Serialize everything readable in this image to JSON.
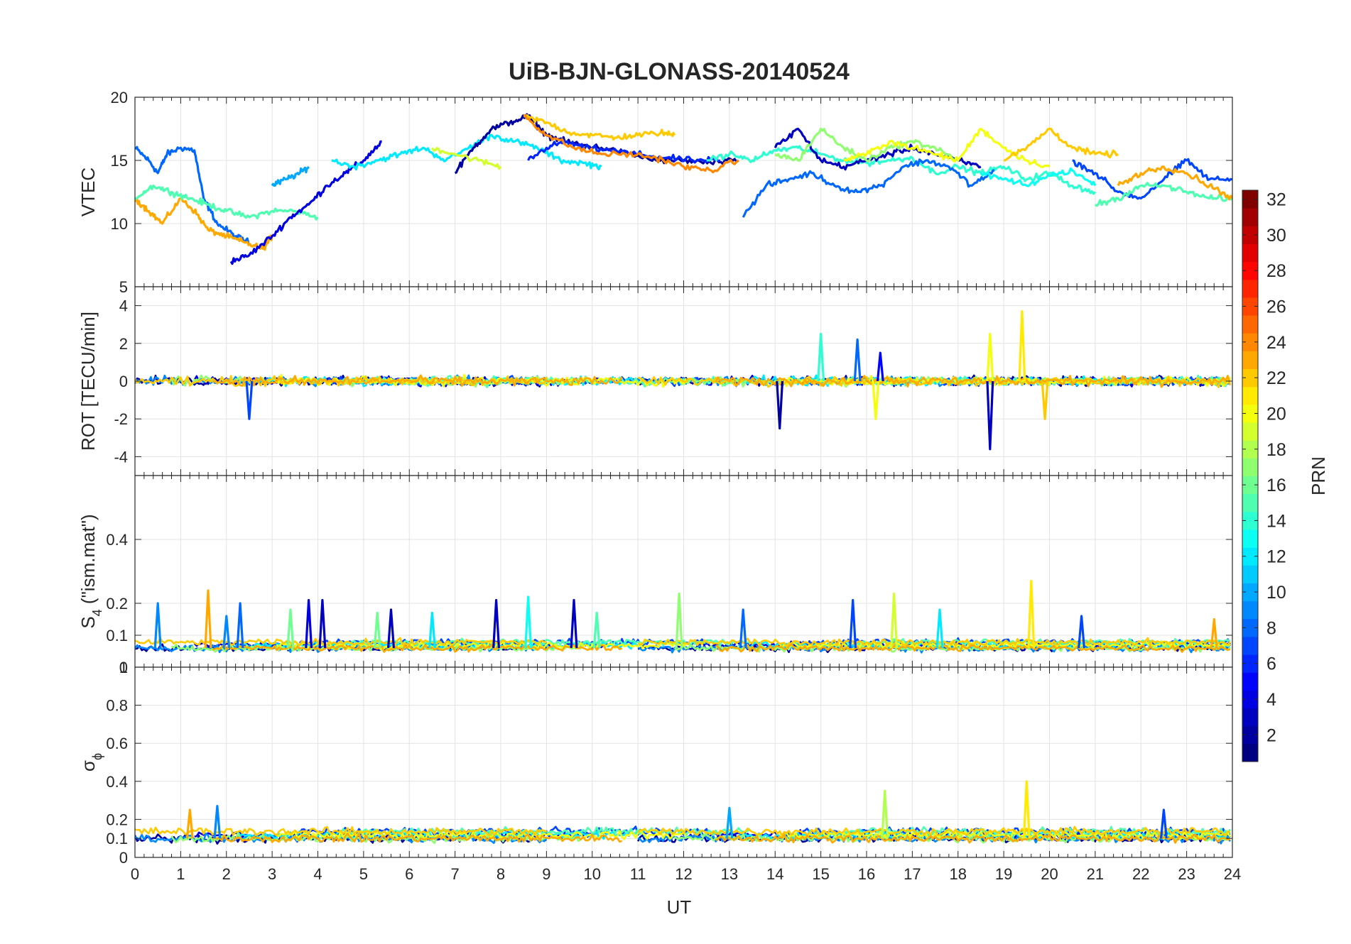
{
  "chart_data": {
    "type": "line",
    "title": "UiB-BJN-GLONASS-20140524",
    "xlabel": "UT",
    "xlim": [
      0,
      24
    ],
    "x_ticks": [
      "0",
      "1",
      "2",
      "3",
      "4",
      "5",
      "6",
      "7",
      "8",
      "9",
      "10",
      "11",
      "12",
      "13",
      "14",
      "15",
      "16",
      "17",
      "18",
      "19",
      "20",
      "21",
      "22",
      "23",
      "24"
    ],
    "grid": true,
    "panels": [
      {
        "name": "vtec",
        "ylabel": "VTEC",
        "ylim": [
          5,
          20
        ],
        "y_ticks": [
          "5",
          "10",
          "15",
          "20"
        ],
        "series": [
          {
            "prn": 8,
            "x": [
              0,
              0.3,
              0.5,
              0.7,
              1,
              1.3,
              1.5,
              1.8,
              2.2,
              2.5
            ],
            "y": [
              16,
              15,
              14,
              15.5,
              16,
              15.8,
              12,
              10,
              9,
              8.5
            ]
          },
          {
            "prn": 23,
            "x": [
              0,
              0.3,
              0.6,
              1,
              1.3,
              1.6,
              2,
              2.4,
              2.8,
              3
            ],
            "y": [
              12,
              11,
              10,
              12,
              11,
              9.5,
              9,
              8.5,
              8,
              9
            ]
          },
          {
            "prn": 15,
            "x": [
              0,
              0.4,
              0.8,
              1.2,
              1.6,
              2,
              2.5,
              3,
              3.5,
              4
            ],
            "y": [
              12,
              13,
              12.5,
              12,
              11.5,
              11,
              10.5,
              11,
              11,
              10.5
            ]
          },
          {
            "prn": 4,
            "x": [
              2.1,
              2.5,
              3,
              3.4,
              3.8,
              4.2,
              4.6,
              5,
              5.4
            ],
            "y": [
              7,
              7.5,
              9,
              10.5,
              11.5,
              13,
              14,
              15,
              16.5
            ]
          },
          {
            "prn": 10,
            "x": [
              3,
              3.3,
              3.6,
              3.8
            ],
            "y": [
              13,
              13.5,
              14,
              14.5
            ]
          },
          {
            "prn": 12,
            "x": [
              4.3,
              4.8,
              5.3,
              5.8,
              6.3,
              6.8,
              7.3,
              7.8,
              8.3,
              8.8,
              9.3,
              9.8,
              10.2
            ],
            "y": [
              15,
              14.5,
              15,
              15.5,
              16,
              15,
              16,
              17,
              16.5,
              16,
              15,
              14.8,
              14.5
            ]
          },
          {
            "prn": 2,
            "x": [
              7.0,
              7.4,
              7.8,
              8.2,
              8.6,
              9.0,
              9.4,
              9.8,
              10.2,
              10.8,
              11.4,
              12,
              12.6,
              13.2
            ],
            "y": [
              14,
              16,
              17.5,
              18,
              18.5,
              17,
              16.5,
              16.2,
              16,
              15.5,
              15,
              15,
              14.8,
              15
            ]
          },
          {
            "prn": 6,
            "x": [
              8.6,
              9,
              9.4,
              9.8,
              10.4,
              11,
              11.6,
              12.2,
              12.8
            ],
            "y": [
              15,
              16,
              16.5,
              16,
              15.8,
              15.5,
              15.2,
              15,
              15
            ]
          },
          {
            "prn": 22,
            "x": [
              8.5,
              9,
              9.5,
              10,
              10.5,
              11,
              11.5,
              11.8
            ],
            "y": [
              18.5,
              18,
              17.2,
              17,
              16.8,
              17,
              17.2,
              17
            ]
          },
          {
            "prn": 19,
            "x": [
              6.5,
              7,
              7.5,
              8
            ],
            "y": [
              16,
              15.5,
              15,
              14.5
            ]
          },
          {
            "prn": 24,
            "x": [
              8.5,
              9,
              9.6,
              10.2,
              10.8,
              11.4,
              12,
              12.6,
              13.2
            ],
            "y": [
              18.6,
              17,
              16,
              15.5,
              15.5,
              15.2,
              14.5,
              14.2,
              15
            ]
          },
          {
            "prn": 14,
            "x": [
              12.5,
              13,
              13.5,
              14,
              14.5,
              15,
              15.5,
              16,
              16.5,
              17,
              17.5,
              18,
              18.5,
              19,
              19.5,
              20,
              20.5,
              21
            ],
            "y": [
              15,
              15.5,
              15,
              15.8,
              16,
              15.5,
              15,
              14.8,
              15,
              15.2,
              14,
              14.5,
              14,
              14.5,
              13.5,
              14,
              13,
              12.5
            ]
          },
          {
            "prn": 8,
            "x": [
              13.3,
              13.8,
              14.3,
              14.8,
              15.3,
              15.8,
              16.3,
              16.8,
              17.3,
              17.8,
              18.3,
              18.8
            ],
            "y": [
              10.5,
              13,
              13.5,
              14,
              13,
              12.5,
              13,
              14.5,
              15,
              14.5,
              13,
              14.2
            ]
          },
          {
            "prn": 3,
            "x": [
              14,
              14.5,
              15,
              15.5,
              16,
              16.5,
              17,
              17.5,
              18,
              18.5
            ],
            "y": [
              16,
              17.5,
              15,
              14.5,
              15,
              15.5,
              16,
              15.5,
              15,
              14.5
            ]
          },
          {
            "prn": 17,
            "x": [
              14,
              14.5,
              15,
              15.5,
              16,
              16.5,
              17,
              17.5,
              18
            ],
            "y": [
              15.5,
              15,
              17.5,
              16,
              15,
              16,
              16.5,
              16,
              15
            ]
          },
          {
            "prn": 20,
            "x": [
              15.5,
              16,
              16.5,
              17,
              17.5,
              18,
              18.5,
              19,
              19.5,
              20
            ],
            "y": [
              15,
              15.5,
              16.5,
              16,
              15.5,
              15,
              17.5,
              16,
              15,
              14.5
            ]
          },
          {
            "prn": 22,
            "x": [
              19,
              19.5,
              20,
              20.5,
              21,
              21.5
            ],
            "y": [
              15,
              16,
              17.5,
              16,
              15.5,
              15.5
            ]
          },
          {
            "prn": 13,
            "x": [
              18.5,
              19,
              19.5,
              20,
              20.5,
              21
            ],
            "y": [
              14,
              13.5,
              13,
              13.8,
              14.2,
              13
            ]
          },
          {
            "prn": 7,
            "x": [
              20.5,
              21,
              21.5,
              22,
              22.5,
              23,
              23.5,
              24
            ],
            "y": [
              15,
              14,
              12.5,
              12,
              13.5,
              15,
              13.5,
              13.5
            ]
          },
          {
            "prn": 15,
            "x": [
              21,
              21.5,
              22,
              22.5,
              23,
              23.5,
              24
            ],
            "y": [
              11.5,
              12,
              13,
              13,
              12.5,
              12,
              12
            ]
          },
          {
            "prn": 23,
            "x": [
              21.5,
              22,
              22.5,
              23,
              23.5,
              24
            ],
            "y": [
              13,
              14,
              14.5,
              14,
              13,
              12
            ]
          }
        ]
      },
      {
        "name": "rot",
        "ylabel": "ROT [TECU/min]",
        "ylim": [
          -5,
          5
        ],
        "y_ticks": [
          "-4",
          "-2",
          "0",
          "2",
          "4"
        ],
        "spikes": [
          {
            "prn": 7,
            "x": 2.5,
            "y": -2
          },
          {
            "prn": 2,
            "x": 14.1,
            "y": -2.5
          },
          {
            "prn": 14,
            "x": 15.0,
            "y": 2.5
          },
          {
            "prn": 20,
            "x": 16.2,
            "y": -2
          },
          {
            "prn": 20,
            "x": 18.7,
            "y": 2.5
          },
          {
            "prn": 3,
            "x": 18.7,
            "y": -3.6
          },
          {
            "prn": 21,
            "x": 19.4,
            "y": 3.7
          },
          {
            "prn": 22,
            "x": 19.9,
            "y": -2
          },
          {
            "prn": 8,
            "x": 15.8,
            "y": 2.2
          },
          {
            "prn": 5,
            "x": 16.3,
            "y": 1.5
          }
        ]
      },
      {
        "name": "s4",
        "ylabel_main": "S",
        "ylabel_sub": "4",
        "ylabel_rest": " (\"ism.mat\")",
        "ylim": [
          0,
          0.6
        ],
        "y_ticks": [
          "0",
          "0.1",
          "0.2",
          "0.4"
        ],
        "spikes": [
          {
            "prn": 9,
            "x": 0.5,
            "y": 0.2
          },
          {
            "prn": 23,
            "x": 1.6,
            "y": 0.24
          },
          {
            "prn": 9,
            "x": 2.0,
            "y": 0.16
          },
          {
            "prn": 8,
            "x": 2.3,
            "y": 0.2
          },
          {
            "prn": 16,
            "x": 3.4,
            "y": 0.18
          },
          {
            "prn": 4,
            "x": 3.8,
            "y": 0.21
          },
          {
            "prn": 3,
            "x": 4.1,
            "y": 0.21
          },
          {
            "prn": 16,
            "x": 5.3,
            "y": 0.17
          },
          {
            "prn": 3,
            "x": 5.6,
            "y": 0.18
          },
          {
            "prn": 12,
            "x": 6.5,
            "y": 0.17
          },
          {
            "prn": 3,
            "x": 7.9,
            "y": 0.21
          },
          {
            "prn": 13,
            "x": 8.6,
            "y": 0.22
          },
          {
            "prn": 3,
            "x": 9.6,
            "y": 0.21
          },
          {
            "prn": 15,
            "x": 10.1,
            "y": 0.17
          },
          {
            "prn": 17,
            "x": 11.9,
            "y": 0.23
          },
          {
            "prn": 8,
            "x": 13.3,
            "y": 0.18
          },
          {
            "prn": 7,
            "x": 15.7,
            "y": 0.21
          },
          {
            "prn": 19,
            "x": 16.6,
            "y": 0.23
          },
          {
            "prn": 12,
            "x": 17.6,
            "y": 0.18
          },
          {
            "prn": 21,
            "x": 19.6,
            "y": 0.27
          },
          {
            "prn": 7,
            "x": 20.7,
            "y": 0.16
          },
          {
            "prn": 23,
            "x": 23.6,
            "y": 0.15
          }
        ]
      },
      {
        "name": "sigma_phi",
        "ylabel_main": "σ",
        "ylabel_sub": "ϕ",
        "ylim": [
          0,
          1
        ],
        "y_ticks": [
          "0",
          "0.1",
          "0.2",
          "0.4",
          "0.6",
          "0.8",
          "1"
        ],
        "spikes": [
          {
            "prn": 9,
            "x": 1.8,
            "y": 0.27
          },
          {
            "prn": 23,
            "x": 1.2,
            "y": 0.25
          },
          {
            "prn": 10,
            "x": 13.0,
            "y": 0.26
          },
          {
            "prn": 18,
            "x": 16.4,
            "y": 0.35
          },
          {
            "prn": 21,
            "x": 19.5,
            "y": 0.4
          },
          {
            "prn": 7,
            "x": 22.5,
            "y": 0.25
          }
        ]
      }
    ],
    "colorbar": {
      "label": "PRN",
      "range": [
        1,
        32
      ],
      "ticks": [
        "2",
        "4",
        "6",
        "8",
        "10",
        "12",
        "14",
        "16",
        "18",
        "20",
        "22",
        "24",
        "26",
        "28",
        "30",
        "32"
      ],
      "colormap": "jet"
    }
  }
}
